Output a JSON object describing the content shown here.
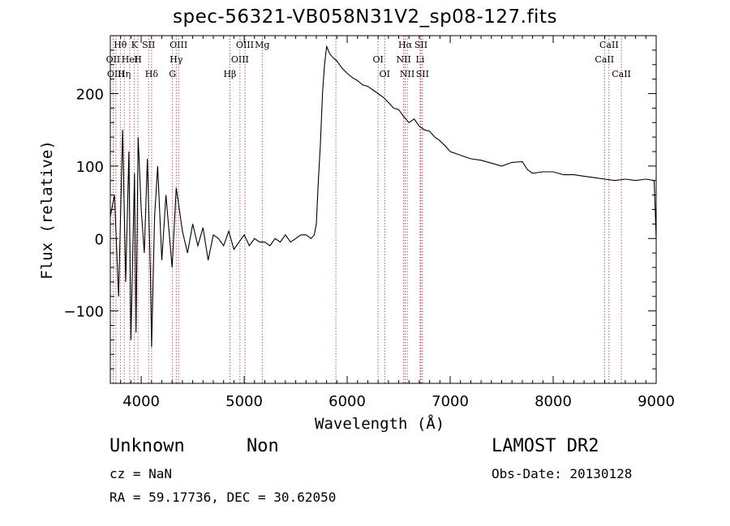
{
  "chart_data": {
    "type": "line",
    "title": "spec-56321-VB058N31V2_sp08-127.fits",
    "xlabel": "Wavelength (Å)",
    "ylabel": "Flux (relative)",
    "xlim": [
      3700,
      9000
    ],
    "ylim": [
      -200,
      280
    ],
    "xticks": [
      4000,
      5000,
      6000,
      7000,
      8000,
      9000
    ],
    "yticks": [
      -100,
      0,
      100,
      200
    ],
    "grid": false,
    "series": [
      {
        "x": [
          3700,
          3740,
          3780,
          3820,
          3850,
          3880,
          3900,
          3935,
          3950,
          3970,
          4000,
          4030,
          4060,
          4090,
          4101,
          4130,
          4160,
          4200,
          4240,
          4300,
          4340,
          4400,
          4450,
          4500,
          4550,
          4600,
          4650,
          4700,
          4750,
          4800,
          4850,
          4900,
          4950,
          5000,
          5050,
          5100,
          5150,
          5200,
          5250,
          5300,
          5350,
          5400,
          5450,
          5500,
          5550,
          5600,
          5650,
          5680,
          5700,
          5720,
          5740,
          5760,
          5780,
          5800,
          5830,
          5860,
          5900,
          5950,
          6000,
          6050,
          6100,
          6150,
          6200,
          6250,
          6300,
          6350,
          6400,
          6450,
          6500,
          6550,
          6600,
          6650,
          6700,
          6750,
          6800,
          6850,
          6900,
          6950,
          7000,
          7100,
          7200,
          7300,
          7400,
          7500,
          7600,
          7700,
          7750,
          7800,
          7900,
          8000,
          8100,
          8200,
          8300,
          8400,
          8500,
          8600,
          8700,
          8800,
          8900,
          8980,
          9000
        ],
        "y": [
          30,
          60,
          -80,
          150,
          -60,
          120,
          -140,
          90,
          -130,
          140,
          40,
          -20,
          110,
          -50,
          -150,
          30,
          100,
          -30,
          60,
          -40,
          70,
          10,
          -20,
          20,
          -10,
          15,
          -30,
          5,
          0,
          -10,
          10,
          -15,
          -5,
          5,
          -10,
          0,
          -5,
          -5,
          -10,
          0,
          -5,
          5,
          -5,
          0,
          5,
          5,
          0,
          5,
          20,
          80,
          130,
          200,
          240,
          265,
          255,
          250,
          245,
          235,
          228,
          222,
          218,
          212,
          210,
          205,
          200,
          195,
          188,
          180,
          178,
          168,
          160,
          165,
          155,
          150,
          148,
          140,
          135,
          128,
          120,
          115,
          110,
          108,
          104,
          100,
          105,
          106,
          95,
          90,
          92,
          92,
          88,
          88,
          86,
          84,
          82,
          80,
          82,
          80,
          82,
          80,
          0
        ]
      }
    ],
    "lines": [
      {
        "label": "Hθ",
        "x": 3797
      },
      {
        "label": "OII",
        "x": 3727
      },
      {
        "label": "OIII",
        "x": 3755
      },
      {
        "label": "K",
        "x": 3934
      },
      {
        "label": "HeI",
        "x": 3889
      },
      {
        "label": "Hη",
        "x": 3835
      },
      {
        "label": "SII",
        "x": 4072
      },
      {
        "label": "H",
        "x": 3968
      },
      {
        "label": "Hδ",
        "x": 4101
      },
      {
        "label": "OIII",
        "x": 4363
      },
      {
        "label": "Hγ",
        "x": 4340
      },
      {
        "label": "G",
        "x": 4304
      },
      {
        "label": "OIII",
        "x": 5007
      },
      {
        "label": "OIII",
        "x": 4959
      },
      {
        "label": "Hβ",
        "x": 4861
      },
      {
        "label": "Mg",
        "x": 5175
      },
      {
        "label": "OI",
        "x": 6300
      },
      {
        "label": "OI",
        "x": 6364
      },
      {
        "label": "Hα",
        "x": 6563
      },
      {
        "label": "NII",
        "x": 6548
      },
      {
        "label": "NII",
        "x": 6583
      },
      {
        "label": "SII",
        "x": 6716
      },
      {
        "label": "Li",
        "x": 6708
      },
      {
        "label": "SII",
        "x": 6731
      },
      {
        "label": "CaII",
        "x": 8542
      },
      {
        "label": "CaII",
        "x": 8498
      },
      {
        "label": "CaII",
        "x": 8662
      },
      {
        "label": "",
        "x": 5890
      }
    ]
  },
  "footer": {
    "class_label": "Unknown",
    "subclass_label": "Non",
    "cz_text": "cz = NaN",
    "coords_text": "RA =  59.17736, DEC =  30.62050",
    "survey_label": "LAMOST DR2",
    "obs_date_text": "Obs-Date: 20130128"
  }
}
